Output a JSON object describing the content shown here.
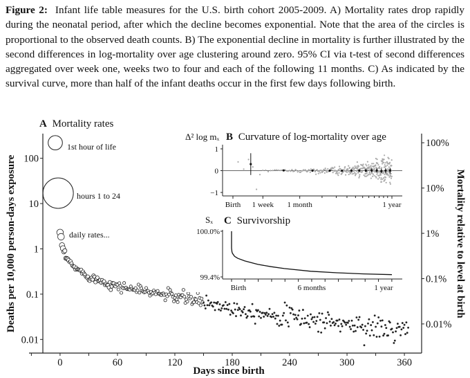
{
  "caption": {
    "label": "Figure 2:",
    "text": "Infant life table measures for the U.S. birth cohort 2005-2009.  A) Mortality rates drop rapidly during the neonatal period, after which the decline becomes exponential. Note that the area of the circles is proportional to the observed death counts.  B) The exponential decline in mortality is further illustrated by the second differences in log-mortality over age clustering around zero.  95% CI via t-test of second differences aggregated over week one, weeks two to four and each of the following 11 months.  C) As indicated by the survival curve, more than half of the infant deaths occur in the first few days following birth."
  },
  "chart_data": [
    {
      "id": "A",
      "type": "scatter",
      "panel_letter": "A",
      "title": "Mortality rates",
      "xlabel": "Days since birth",
      "ylabel": "Deaths per 10,000 person-days exposure",
      "ylabel_right": "Mortality relative to level at birth",
      "yscale": "log",
      "xlim": [
        -18,
        378
      ],
      "ylim": [
        0.005,
        350
      ],
      "xticks": [
        0,
        60,
        120,
        180,
        240,
        300,
        360
      ],
      "xtick_labels": [
        "0",
        "60",
        "120",
        "180",
        "240",
        "300",
        "360"
      ],
      "xminor_every": 30,
      "yticks": [
        100,
        10,
        1,
        0.1,
        0.01
      ],
      "ytick_labels": [
        "100",
        "10",
        "1",
        "0.1",
        "0.01"
      ],
      "yticks_right_values": [
        220,
        22,
        2.2,
        0.22,
        0.022
      ],
      "yticks_right_labels": [
        "100%",
        "10%",
        "1%",
        "0.1%",
        "0.01%"
      ],
      "annotations": [
        {
          "text": "1st hour of life",
          "x": 0,
          "y": 220,
          "circle_relative_area": 0.22
        },
        {
          "text": "hours 1 to 24",
          "x": 0,
          "y": 17,
          "circle_relative_area": 1.0
        },
        {
          "text": "daily rates...",
          "x": 0,
          "y": 2.3
        }
      ],
      "series": [
        {
          "name": "daily rates",
          "model": "exponential decline after neonatal drop",
          "day1": 2.3,
          "day2": 1.85,
          "day3": 1.2,
          "day4": 0.95,
          "day7": 0.65,
          "day14": 0.42,
          "day30": 0.25,
          "day60": 0.15,
          "day120": 0.09,
          "day180": 0.05,
          "day240": 0.032,
          "day300": 0.022,
          "day360": 0.015,
          "n_points": 365
        }
      ]
    },
    {
      "id": "B",
      "type": "scatter",
      "panel_letter": "B",
      "title": "Curvature of log-mortality over age",
      "ylabel": "Δ² log mₓ",
      "xscale": "log-like",
      "xtick_labels": [
        "Birth",
        "1 week",
        "1 month",
        "1 year"
      ],
      "yticks": [
        1,
        0,
        -1
      ],
      "ytick_labels": [
        "1",
        "0",
        "−1"
      ],
      "ylim": [
        -1.1,
        1.1
      ],
      "ci_points": [
        {
          "label": "week one",
          "estimate": 0.3,
          "lo": -0.2,
          "hi": 0.8
        },
        {
          "label": "weeks 2-4",
          "estimate": 0.01,
          "lo": -0.03,
          "hi": 0.05
        },
        {
          "label": "month 2",
          "estimate": 0.0,
          "lo": -0.03,
          "hi": 0.03
        },
        {
          "label": "month 3",
          "estimate": 0.0,
          "lo": -0.04,
          "hi": 0.04
        },
        {
          "label": "month 4",
          "estimate": 0.0,
          "lo": -0.05,
          "hi": 0.05
        },
        {
          "label": "month 5",
          "estimate": 0.0,
          "lo": -0.05,
          "hi": 0.05
        },
        {
          "label": "month 6",
          "estimate": 0.0,
          "lo": -0.06,
          "hi": 0.06
        },
        {
          "label": "month 7",
          "estimate": 0.0,
          "lo": -0.07,
          "hi": 0.07
        },
        {
          "label": "month 8",
          "estimate": 0.01,
          "lo": -0.08,
          "hi": 0.1
        },
        {
          "label": "month 9",
          "estimate": 0.0,
          "lo": -0.1,
          "hi": 0.1
        },
        {
          "label": "month 10",
          "estimate": -0.02,
          "lo": -0.12,
          "hi": 0.1
        },
        {
          "label": "month 11",
          "estimate": 0.0,
          "lo": -0.12,
          "hi": 0.12
        },
        {
          "label": "month 12",
          "estimate": 0.0,
          "lo": -0.13,
          "hi": 0.13
        }
      ]
    },
    {
      "id": "C",
      "type": "line",
      "panel_letter": "C",
      "title": "Survivorship",
      "ylabel": "Sₓ",
      "yticks": [
        100.0,
        99.4
      ],
      "ytick_labels": [
        "100.0%",
        "99.4%"
      ],
      "ylim": [
        99.4,
        100.0
      ],
      "xtick_labels": [
        "Birth",
        "6 months",
        "1 year"
      ],
      "xticks_days": [
        0,
        182.5,
        365
      ],
      "xminor_every_days": 30.4,
      "series": [
        {
          "name": "S_x",
          "x_days": [
            0,
            0.05,
            1,
            2,
            7,
            14,
            30,
            60,
            90,
            120,
            180,
            240,
            300,
            365
          ],
          "y_percent": [
            100.0,
            99.78,
            99.73,
            99.71,
            99.67,
            99.645,
            99.61,
            99.565,
            99.535,
            99.51,
            99.475,
            99.455,
            99.44,
            99.43
          ]
        }
      ]
    }
  ]
}
